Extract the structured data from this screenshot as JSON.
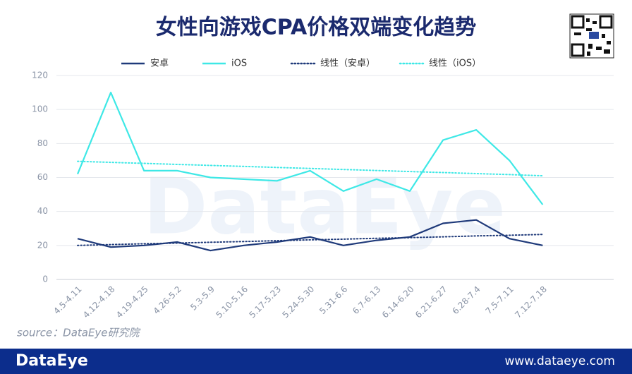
{
  "chart_data": {
    "type": "line",
    "title": "女性向游戏CPA价格双端变化趋势",
    "watermark": "DataEye",
    "source": "source：DataEye研究院",
    "footer_logo": "DataEye",
    "footer_url": "www.dataeye.com",
    "categories": [
      "4.5-4.11",
      "4.12-4.18",
      "4.19-4.25",
      "4.26-5.2",
      "5.3-5.9",
      "5.10-5.16",
      "5.17-5.23",
      "5.24-5.30",
      "5.31-6.6",
      "6.7-6.13",
      "6.14-6.20",
      "6.21-6.27",
      "6.28-7.4",
      "7.5-7.11",
      "7.12-7.18"
    ],
    "series": [
      {
        "name": "安卓",
        "color": "#1f3a7a",
        "style": "solid",
        "values": [
          24,
          19,
          20,
          22,
          17,
          20,
          22,
          25,
          20,
          23,
          25,
          33,
          35,
          24,
          20
        ]
      },
      {
        "name": "iOS",
        "color": "#3ee8e6",
        "style": "solid",
        "values": [
          62,
          110,
          64,
          64,
          60,
          59,
          58,
          64,
          52,
          59,
          52,
          82,
          88,
          70,
          44
        ]
      },
      {
        "name": "线性（安卓）",
        "color": "#1f3a7a",
        "style": "dotted",
        "values": [
          20,
          20.5,
          21,
          21.4,
          21.9,
          22.3,
          22.8,
          23.3,
          23.7,
          24.2,
          24.6,
          25.1,
          25.6,
          26,
          26.5
        ]
      },
      {
        "name": "线性（iOS）",
        "color": "#3ee8e6",
        "style": "dotted",
        "values": [
          69.5,
          68.9,
          68.3,
          67.7,
          67.1,
          66.5,
          65.9,
          65.3,
          64.7,
          64.1,
          63.5,
          62.9,
          62.3,
          61.7,
          61
        ]
      }
    ],
    "ylim": [
      0,
      120
    ],
    "yticks": [
      0,
      20,
      40,
      60,
      80,
      100,
      120
    ],
    "grid": true,
    "legend": "top"
  }
}
